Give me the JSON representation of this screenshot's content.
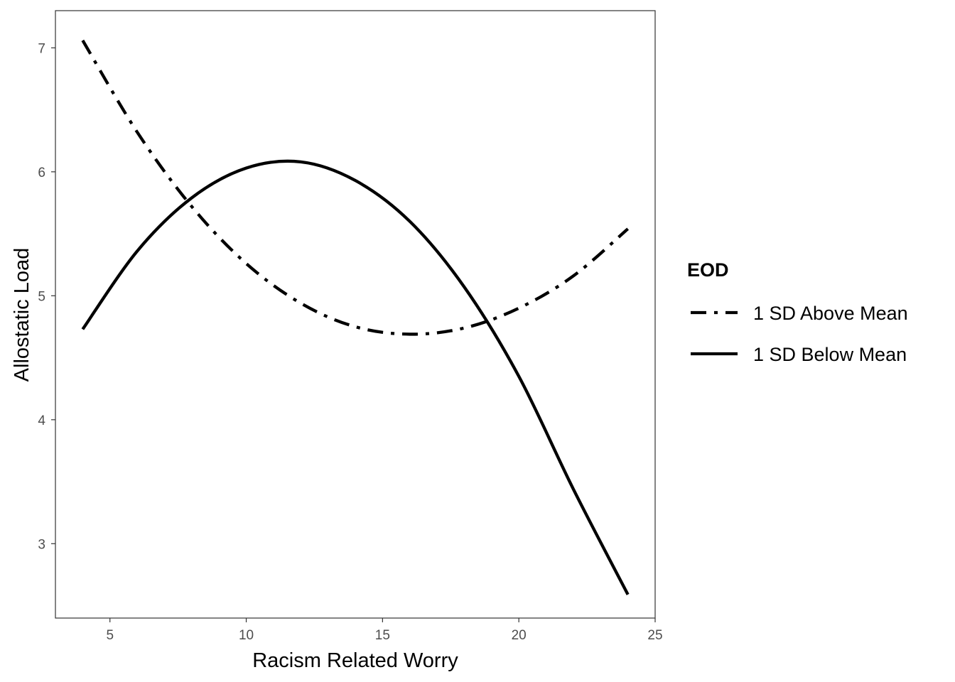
{
  "chart_data": {
    "type": "line",
    "title": "",
    "xlabel": "Racism Related Worry",
    "ylabel": "Allostatic Load",
    "xlim": [
      3,
      25
    ],
    "ylim": [
      2.4,
      7.3
    ],
    "xticks": [
      5,
      10,
      15,
      20,
      25
    ],
    "yticks": [
      3,
      4,
      5,
      6,
      7
    ],
    "grid": false,
    "legend": {
      "title": "EOD",
      "position": "right"
    },
    "series": [
      {
        "name": "1 SD Above Mean",
        "linestyle": "dashdot",
        "color": "#000000",
        "x": [
          4,
          6,
          8,
          10,
          12,
          14,
          16,
          18,
          20,
          22,
          24
        ],
        "y": [
          7.06,
          6.32,
          5.72,
          5.26,
          4.94,
          4.75,
          4.69,
          4.74,
          4.9,
          5.16,
          5.54
        ]
      },
      {
        "name": "1 SD Below Mean",
        "linestyle": "solid",
        "color": "#000000",
        "x": [
          4,
          6,
          8,
          10,
          12,
          14,
          16,
          18,
          20,
          22,
          24
        ],
        "y": [
          4.73,
          5.36,
          5.79,
          6.03,
          6.08,
          5.93,
          5.6,
          5.07,
          4.35,
          3.44,
          2.59
        ]
      }
    ]
  }
}
